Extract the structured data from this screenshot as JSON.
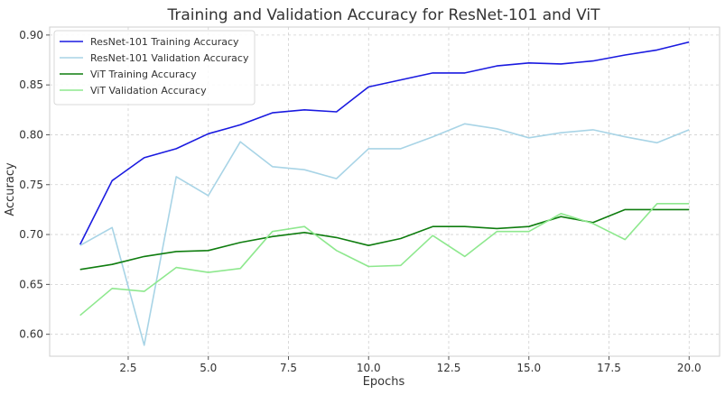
{
  "chart_data": {
    "type": "line",
    "title": "Training and Validation Accuracy for ResNet-101 and ViT",
    "xlabel": "Epochs",
    "ylabel": "Accuracy",
    "xlim": [
      0.05,
      20.95
    ],
    "ylim": [
      0.578,
      0.908
    ],
    "xticks": [
      2.5,
      5.0,
      7.5,
      10.0,
      12.5,
      15.0,
      17.5,
      20.0
    ],
    "xtick_labels": [
      "2.5",
      "5.0",
      "7.5",
      "10.0",
      "12.5",
      "15.0",
      "17.5",
      "20.0"
    ],
    "yticks": [
      0.6,
      0.65,
      0.7,
      0.75,
      0.8,
      0.85,
      0.9
    ],
    "ytick_labels": [
      "0.60",
      "0.65",
      "0.70",
      "0.75",
      "0.80",
      "0.85",
      "0.90"
    ],
    "grid": true,
    "legend_position": "top-left",
    "x": [
      1,
      2,
      3,
      4,
      5,
      6,
      7,
      8,
      9,
      10,
      11,
      12,
      13,
      14,
      15,
      16,
      17,
      18,
      19,
      20
    ],
    "series": [
      {
        "name": "ResNet-101 Training Accuracy",
        "color": "#1a1ae0",
        "values": [
          0.69,
          0.754,
          0.777,
          0.786,
          0.801,
          0.81,
          0.822,
          0.825,
          0.823,
          0.848,
          0.855,
          0.862,
          0.862,
          0.869,
          0.872,
          0.871,
          0.874,
          0.88,
          0.885,
          0.893
        ]
      },
      {
        "name": "ResNet-101 Validation Accuracy",
        "color": "#a8d4e6",
        "values": [
          0.689,
          0.707,
          0.589,
          0.758,
          0.739,
          0.793,
          0.768,
          0.765,
          0.756,
          0.786,
          0.786,
          0.798,
          0.811,
          0.806,
          0.797,
          0.802,
          0.805,
          0.798,
          0.792,
          0.805
        ]
      },
      {
        "name": "ViT Training Accuracy",
        "color": "#0f7d0f",
        "values": [
          0.665,
          0.67,
          0.678,
          0.683,
          0.684,
          0.692,
          0.698,
          0.702,
          0.697,
          0.689,
          0.696,
          0.708,
          0.708,
          0.706,
          0.708,
          0.718,
          0.712,
          0.725,
          0.725,
          0.725
        ]
      },
      {
        "name": "ViT Validation Accuracy",
        "color": "#8ee88e",
        "values": [
          0.619,
          0.646,
          0.643,
          0.667,
          0.662,
          0.666,
          0.703,
          0.708,
          0.684,
          0.668,
          0.669,
          0.699,
          0.678,
          0.703,
          0.703,
          0.721,
          0.711,
          0.695,
          0.731,
          0.731
        ]
      }
    ]
  }
}
